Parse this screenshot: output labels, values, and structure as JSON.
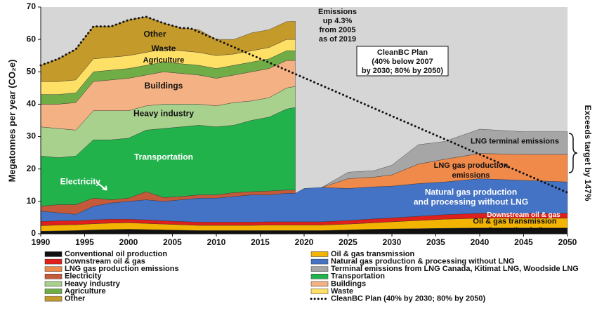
{
  "chart_data": {
    "type": "area",
    "y_label": "Megatonnes per year (CO₂e)",
    "x": [
      1990,
      1992,
      1994,
      1996,
      1998,
      2000,
      2002,
      2004,
      2006,
      2008,
      2010,
      2012,
      2014,
      2016,
      2018,
      2019,
      2020,
      2022,
      2025,
      2028,
      2030,
      2033,
      2036,
      2040,
      2045,
      2050
    ],
    "xlim": [
      1990,
      2050
    ],
    "xticks": [
      1990,
      1995,
      2000,
      2005,
      2010,
      2015,
      2020,
      2025,
      2030,
      2035,
      2040,
      2045,
      2050
    ],
    "ylim": [
      0,
      70
    ],
    "yticks": [
      0,
      10,
      20,
      30,
      40,
      50,
      60,
      70
    ],
    "series": [
      {
        "name": "Conventional oil production",
        "color": "#111111",
        "values": [
          0.8,
          0.9,
          1.0,
          1.2,
          1.3,
          1.4,
          1.3,
          1.2,
          1.1,
          1.0,
          1.0,
          1.0,
          1.0,
          1.0,
          1.0,
          1.0,
          1.0,
          1.0,
          1.2,
          1.4,
          1.5,
          1.6,
          1.7,
          1.8,
          1.8,
          1.8
        ]
      },
      {
        "name": "Oil & gas transmission",
        "color": "#f2b400",
        "values": [
          1.7,
          1.8,
          1.8,
          1.9,
          2.0,
          2.0,
          1.9,
          1.8,
          1.7,
          1.6,
          1.6,
          1.6,
          1.6,
          1.7,
          1.7,
          1.7,
          1.7,
          1.7,
          1.8,
          2.0,
          2.2,
          2.5,
          2.8,
          3.0,
          3.0,
          3.0
        ]
      },
      {
        "name": "Downstream oil & gas",
        "color": "#e0201b",
        "values": [
          1.3,
          1.3,
          1.2,
          1.2,
          1.2,
          1.1,
          1.1,
          1.0,
          1.0,
          1.0,
          1.0,
          1.0,
          1.0,
          1.0,
          1.0,
          1.0,
          1.0,
          1.0,
          1.1,
          1.2,
          1.2,
          1.3,
          1.4,
          1.5,
          1.5,
          1.5
        ]
      },
      {
        "name": "Natural gas production & processing without LNG",
        "color": "#4472c4",
        "values": [
          3.2,
          2.5,
          2.0,
          4.2,
          5.0,
          5.5,
          6.2,
          6.0,
          6.7,
          7.4,
          7.4,
          7.9,
          8.4,
          8.3,
          8.8,
          8.8,
          10.3,
          10.6,
          9.9,
          9.9,
          9.8,
          10.1,
          10.1,
          10.7,
          10.2,
          9.7
        ]
      },
      {
        "name": "LNG gas production emissions",
        "color": "#f08a4b",
        "values": [
          null,
          null,
          null,
          null,
          null,
          null,
          null,
          null,
          null,
          null,
          null,
          null,
          null,
          null,
          null,
          null,
          null,
          0,
          3,
          3,
          3.5,
          6,
          7,
          7.8,
          8,
          8.5
        ]
      },
      {
        "name": "Terminal emissions from LNG Canada, Kitimat LNG, Woodside LNG",
        "color": "#a6a6a6",
        "values": [
          null,
          null,
          null,
          null,
          null,
          null,
          null,
          null,
          null,
          null,
          null,
          null,
          null,
          null,
          null,
          null,
          null,
          0,
          2,
          2,
          3,
          6,
          5.5,
          7.5,
          7,
          7
        ]
      },
      {
        "name": "Electricity",
        "color": "#c55a3a",
        "values": [
          1.5,
          2.5,
          3.0,
          2.5,
          1.0,
          1.0,
          2.5,
          1.2,
          1.0,
          1.0,
          1.0,
          1.2,
          1.0,
          1.2,
          1.0,
          1.0,
          null,
          null,
          null,
          null,
          null,
          null,
          null,
          null,
          null,
          null
        ]
      },
      {
        "name": "Transportation",
        "color": "#22b24c",
        "values": [
          15.5,
          14.5,
          15,
          18,
          18.5,
          18.5,
          19,
          21.3,
          21.5,
          21.5,
          21,
          20.8,
          22,
          22.8,
          25,
          25.5,
          null,
          null,
          null,
          null,
          null,
          null,
          null,
          null,
          null,
          null
        ]
      },
      {
        "name": "Heavy industry",
        "color": "#a9d18e",
        "values": [
          9,
          9,
          8,
          9,
          9,
          8.5,
          7.5,
          7.5,
          7,
          6.5,
          6.5,
          7,
          6,
          6,
          6.5,
          6.5,
          null,
          null,
          null,
          null,
          null,
          null,
          null,
          null,
          null,
          null
        ]
      },
      {
        "name": "Buildings",
        "color": "#f4b183",
        "values": [
          7,
          7.5,
          8.5,
          9,
          9.5,
          10,
          9.5,
          10,
          9.5,
          9,
          8.5,
          8.5,
          9,
          9,
          8.5,
          8,
          null,
          null,
          null,
          null,
          null,
          null,
          null,
          null,
          null,
          null
        ]
      },
      {
        "name": "Agriculture",
        "color": "#70ad47",
        "values": [
          3,
          3,
          3,
          3,
          3,
          3,
          3,
          3,
          3,
          3,
          3,
          3,
          3,
          3,
          3,
          3,
          null,
          null,
          null,
          null,
          null,
          null,
          null,
          null,
          null,
          null
        ]
      },
      {
        "name": "Waste",
        "color": "#ffe066",
        "values": [
          4,
          4,
          4,
          4,
          4,
          4,
          4,
          4,
          4,
          4,
          4,
          3.5,
          3.5,
          3.5,
          3.5,
          3.5,
          null,
          null,
          null,
          null,
          null,
          null,
          null,
          null,
          null,
          null
        ]
      },
      {
        "name": "Other",
        "color": "#c49a2a",
        "values": [
          5,
          7,
          9.5,
          10,
          9.5,
          11,
          11,
          8,
          7,
          7,
          5,
          4.5,
          5.5,
          5.5,
          5.5,
          5.6,
          null,
          null,
          null,
          null,
          null,
          null,
          null,
          null,
          null,
          null
        ]
      }
    ],
    "line": {
      "name": "CleanBC Plan (40% by 2030; 80% by 2050)",
      "color": "#111111",
      "x": [
        1990,
        1992,
        1994,
        1996,
        1998,
        2000,
        2002,
        2004,
        2006,
        2007,
        2050
      ],
      "values": [
        52,
        54,
        57,
        64,
        64,
        66,
        67,
        65,
        63.5,
        63.5,
        12.7
      ]
    },
    "annotations": {
      "emissions": [
        "Emissions",
        "up 4.3%",
        "from 2005",
        "as of 2019"
      ],
      "cleanbc": [
        "CleanBC Plan",
        "(40% below 2007",
        "by 2030; 80% by 2050)"
      ],
      "exceeds": "Exceeds target by 147%"
    },
    "area_labels": [
      [
        "Other"
      ],
      [
        "Waste"
      ],
      [
        "Agriculture"
      ],
      [
        "Buildings"
      ],
      [
        "Heavy industry"
      ],
      [
        "Transportation"
      ],
      [
        "Electricity"
      ],
      [
        "LNG terminal emissions"
      ],
      [
        "LNG gas production",
        "emissions"
      ],
      [
        "Natural gas production",
        "and processing without LNG"
      ],
      [
        "Downstream oil & gas"
      ],
      [
        "Oil & gas transmission"
      ],
      [
        "Conventional oil"
      ]
    ]
  }
}
